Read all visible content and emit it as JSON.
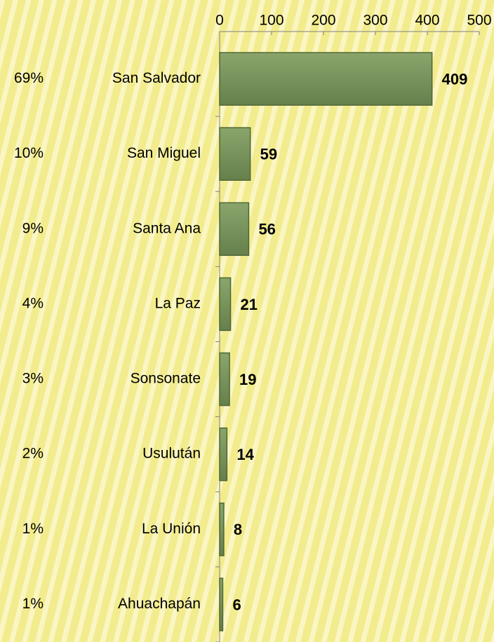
{
  "chart_data": {
    "type": "bar",
    "orientation": "horizontal",
    "categories": [
      "San Salvador",
      "San Miguel",
      "Santa Ana",
      "La Paz",
      "Sonsonate",
      "Usulután",
      "La Unión",
      "Ahuachapán"
    ],
    "values": [
      409,
      59,
      56,
      21,
      19,
      14,
      8,
      6
    ],
    "annotations": [
      "69%",
      "10%",
      "9%",
      "4%",
      "3%",
      "2%",
      "1%",
      "1%"
    ],
    "color": "#76925a",
    "xlim": [
      0,
      500
    ],
    "xticks": [
      0,
      100,
      200,
      300,
      400,
      500
    ],
    "grid": false
  }
}
